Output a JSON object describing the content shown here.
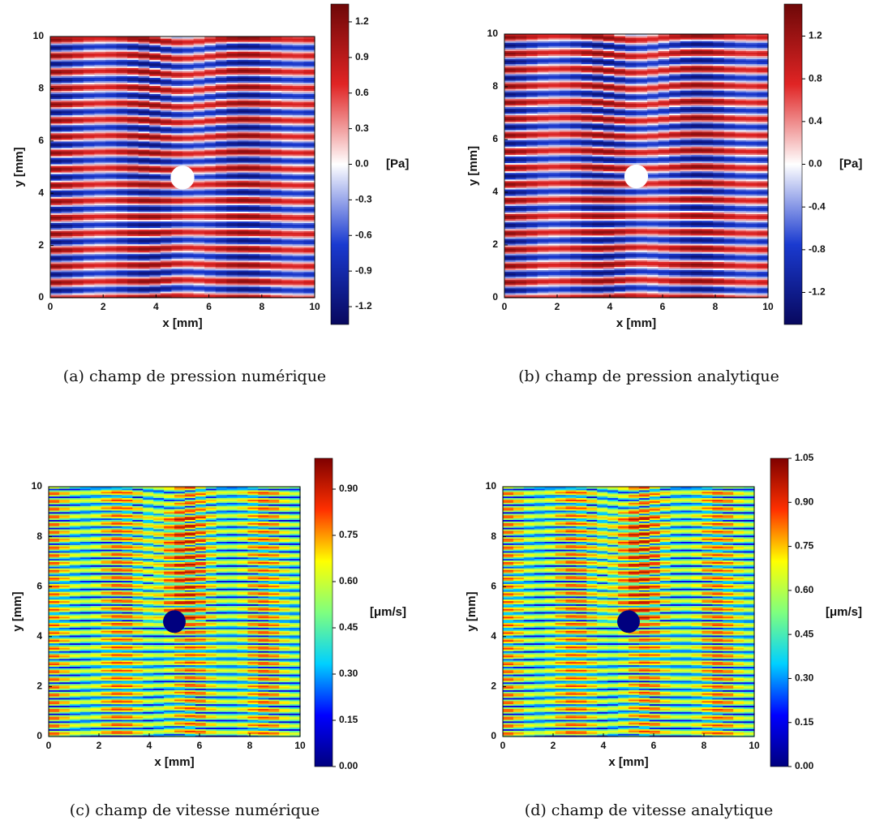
{
  "chart_data": [
    {
      "type": "heatmap",
      "caption": "(a) champ de pression numérique",
      "xlabel": "x [mm]",
      "ylabel": "y [mm]",
      "xlim": [
        0,
        10
      ],
      "ylim": [
        0,
        10
      ],
      "xticks": [
        0,
        2,
        4,
        6,
        8,
        10
      ],
      "yticks": [
        0,
        2,
        4,
        6,
        8,
        10
      ],
      "colorbar": {
        "label": "[Pa]",
        "lim": [
          -1.35,
          1.35
        ],
        "ticks": [
          -1.2,
          -0.9,
          -0.6,
          -0.3,
          {
            "value": 0,
            "label": "0.0"
          },
          0.3,
          0.6,
          0.9,
          1.2
        ]
      },
      "colormap": [
        "#08085e",
        "#1a3ad0",
        "#ffffff",
        "#e02424",
        "#6e0808"
      ]
    },
    {
      "type": "heatmap",
      "caption": "(b) champ de pression analytique",
      "xlabel": "x [mm]",
      "ylabel": "y [mm]",
      "xlim": [
        0,
        10
      ],
      "ylim": [
        0,
        10
      ],
      "xticks": [
        0,
        2,
        4,
        6,
        8,
        10
      ],
      "yticks": [
        0,
        2,
        4,
        6,
        8,
        10
      ],
      "colorbar": {
        "label": "[Pa]",
        "lim": [
          -1.5,
          1.5
        ],
        "ticks": [
          -1.2,
          -0.8,
          -0.4,
          {
            "value": 0,
            "label": "0.0"
          },
          0.4,
          0.8,
          1.2
        ]
      },
      "colormap": [
        "#08085e",
        "#1a3ad0",
        "#ffffff",
        "#e02424",
        "#6e0808"
      ]
    },
    {
      "type": "heatmap",
      "caption": "(c) champ de vitesse numérique",
      "xlabel": "x [mm]",
      "ylabel": "y [mm]",
      "xlim": [
        0,
        10
      ],
      "ylim": [
        0,
        10
      ],
      "xticks": [
        0,
        2,
        4,
        6,
        8,
        10
      ],
      "yticks": [
        0,
        2,
        4,
        6,
        8,
        10
      ],
      "colorbar": {
        "label": "[μm/s]",
        "lim": [
          0,
          1.0
        ],
        "ticks": [
          {
            "value": 0,
            "label": "0.00"
          },
          0.15,
          {
            "value": 0.3,
            "label": "0.30"
          },
          0.45,
          {
            "value": 0.6,
            "label": "0.60"
          },
          0.75,
          {
            "value": 0.9,
            "label": "0.90"
          }
        ]
      },
      "colormap": [
        "#00007f",
        "#0000ff",
        "#00d0ff",
        "#7fff7f",
        "#ffff00",
        "#ff3000",
        "#7f0000"
      ]
    },
    {
      "type": "heatmap",
      "caption": "(d) champ de vitesse analytique",
      "xlabel": "x [mm]",
      "ylabel": "y [mm]",
      "xlim": [
        0,
        10
      ],
      "ylim": [
        0,
        10
      ],
      "xticks": [
        0,
        2,
        4,
        6,
        8,
        10
      ],
      "yticks": [
        0,
        2,
        4,
        6,
        8,
        10
      ],
      "colorbar": {
        "label": "[μm/s]",
        "lim": [
          0,
          1.05
        ],
        "ticks": [
          {
            "value": 0,
            "label": "0.00"
          },
          0.15,
          {
            "value": 0.3,
            "label": "0.30"
          },
          0.45,
          {
            "value": 0.6,
            "label": "0.60"
          },
          0.75,
          {
            "value": 0.9,
            "label": "0.90"
          },
          1.05
        ]
      },
      "colormap": [
        "#00007f",
        "#0000ff",
        "#00d0ff",
        "#7fff7f",
        "#ffff00",
        "#ff3000",
        "#7f0000"
      ]
    }
  ]
}
